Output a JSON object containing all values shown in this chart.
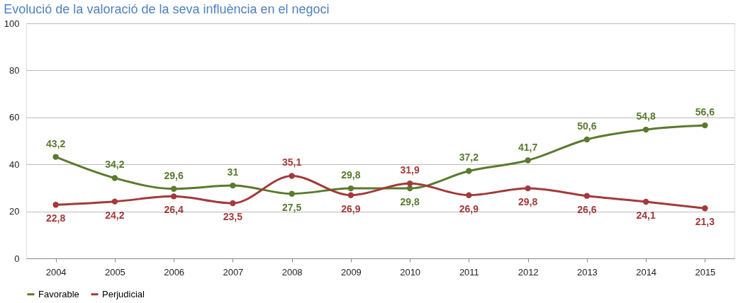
{
  "chart_data": {
    "type": "line",
    "title": "Evolució de la valoració de la seva influència en el negoci",
    "categories": [
      "2004",
      "2005",
      "2006",
      "2007",
      "2008",
      "2009",
      "2010",
      "2011",
      "2012",
      "2013",
      "2014",
      "2015"
    ],
    "series": [
      {
        "name": "Favorable",
        "color": "#5a7a2e",
        "values": [
          43.2,
          34.2,
          29.6,
          31,
          27.5,
          29.8,
          29.8,
          37.2,
          41.7,
          50.6,
          54.8,
          56.6
        ],
        "value_labels": [
          "43,2",
          "34,2",
          "29,6",
          "31",
          "27,5",
          "29,8",
          "29,8",
          "37,2",
          "41,7",
          "50,6",
          "54,8",
          "56,6"
        ]
      },
      {
        "name": "Perjudicial",
        "color": "#a33a3a",
        "values": [
          22.8,
          24.2,
          26.4,
          23.5,
          35.1,
          26.9,
          31.9,
          26.9,
          29.8,
          26.6,
          24.1,
          21.3
        ],
        "value_labels": [
          "22,8",
          "24,2",
          "26,4",
          "23,5",
          "35,1",
          "26,9",
          "31,9",
          "26,9",
          "29,8",
          "26,6",
          "24,1",
          "21,3"
        ]
      }
    ],
    "ylim": [
      0,
      100
    ],
    "yticks": [
      0,
      20,
      40,
      60,
      80,
      100
    ],
    "grid": "y",
    "legend": "bottom",
    "marker": "circle",
    "line_style": "solid"
  }
}
